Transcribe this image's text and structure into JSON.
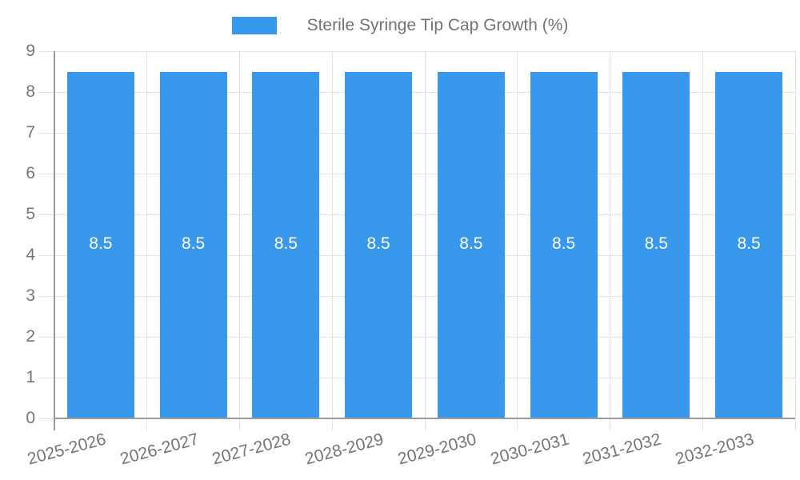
{
  "chart_data": {
    "type": "bar",
    "title": "",
    "legend_label": "Sterile Syringe Tip Cap Growth (%)",
    "legend_position": "top",
    "categories": [
      "2025-2026",
      "2026-2027",
      "2027-2028",
      "2028-2029",
      "2029-2030",
      "2030-2031",
      "2031-2032",
      "2032-2033"
    ],
    "values": [
      8.5,
      8.5,
      8.5,
      8.5,
      8.5,
      8.5,
      8.5,
      8.5
    ],
    "value_labels": [
      "8.5",
      "8.5",
      "8.5",
      "8.5",
      "8.5",
      "8.5",
      "8.5",
      "8.5"
    ],
    "xlabel": "",
    "ylabel": "",
    "ylim": [
      0,
      9
    ],
    "yticks": [
      0,
      1,
      2,
      3,
      4,
      5,
      6,
      7,
      8,
      9
    ],
    "grid": true,
    "colors": {
      "bar": "#3898ec",
      "bar_label": "#ffffff",
      "grid": "#e3e3e3",
      "axis": "#9a9a9a",
      "tick_text": "#757575",
      "legend_text": "#737373",
      "background": "#ffffff"
    }
  }
}
